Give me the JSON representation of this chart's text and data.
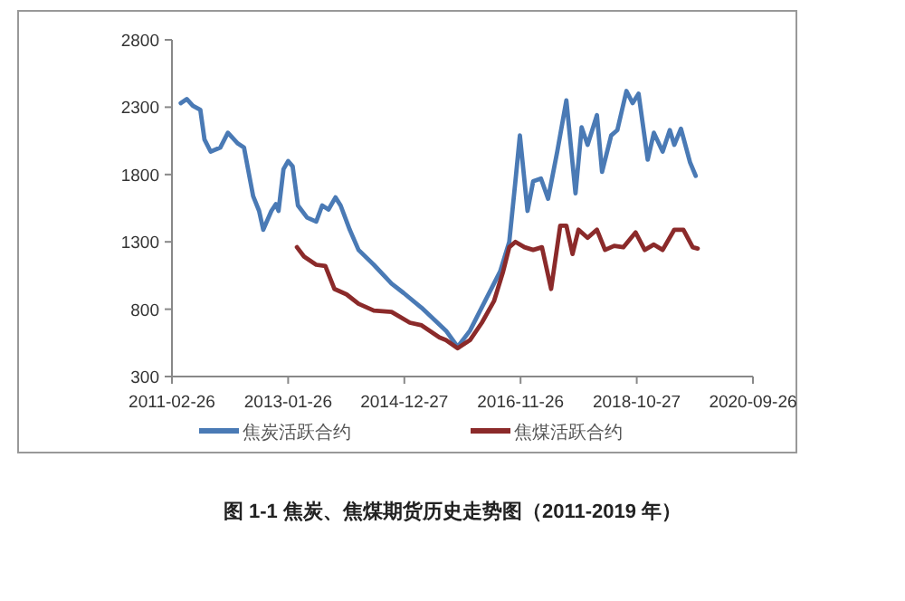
{
  "chart_data": {
    "type": "line",
    "xlim": [
      "2011-02-26",
      "2020-09-26"
    ],
    "xticks": [
      {
        "value": "2011-02-26",
        "label": "2011-02-26"
      },
      {
        "value": "2013-01-26",
        "label": "2013-01-26"
      },
      {
        "value": "2014-12-27",
        "label": "2014-12-27"
      },
      {
        "value": "2016-11-26",
        "label": "2016-11-26"
      },
      {
        "value": "2018-10-27",
        "label": "2018-10-27"
      },
      {
        "value": "2020-09-26",
        "label": "2020-09-26"
      }
    ],
    "ylim": [
      300,
      2800
    ],
    "yticks": [
      300,
      800,
      1300,
      1800,
      2300,
      2800
    ],
    "grid": false,
    "legend": "bottom",
    "line_style": "solid",
    "series": [
      {
        "name": "焦炭活跃合约",
        "color": "#4a7ab5",
        "x": [
          "2011-04-20",
          "2011-05-26",
          "2011-07-02",
          "2011-08-16",
          "2011-09-10",
          "2011-10-17",
          "2011-12-14",
          "2012-01-29",
          "2012-03-29",
          "2012-05-05",
          "2012-06-29",
          "2012-08-04",
          "2012-08-29",
          "2012-10-17",
          "2012-11-13",
          "2012-11-29",
          "2012-12-29",
          "2013-01-26",
          "2013-02-22",
          "2013-03-26",
          "2013-05-20",
          "2013-07-14",
          "2013-08-19",
          "2013-09-26",
          "2013-11-07",
          "2013-12-08",
          "2014-02-01",
          "2014-03-26",
          "2014-06-26",
          "2014-10-11",
          "2014-12-23",
          "2015-04-10",
          "2015-09-04",
          "2015-11-13",
          "2016-01-26",
          "2016-04-26",
          "2016-07-26",
          "2016-09-19",
          "2016-10-26",
          "2016-11-22",
          "2017-01-07",
          "2017-02-10",
          "2017-03-29",
          "2017-05-11",
          "2017-07-05",
          "2017-08-29",
          "2017-10-23",
          "2017-11-29",
          "2018-01-04",
          "2018-03-01",
          "2018-04-01",
          "2018-05-26",
          "2018-07-02",
          "2018-08-26",
          "2018-10-02",
          "2018-11-07",
          "2019-01-01",
          "2019-02-07",
          "2019-04-01",
          "2019-05-14",
          "2019-06-10",
          "2019-07-20",
          "2019-09-13",
          "2019-10-17"
        ],
        "values": [
          2330,
          2360,
          2310,
          2280,
          2060,
          1970,
          2000,
          2110,
          2030,
          2000,
          1640,
          1530,
          1390,
          1530,
          1580,
          1530,
          1840,
          1900,
          1860,
          1570,
          1480,
          1450,
          1570,
          1540,
          1630,
          1570,
          1390,
          1240,
          1130,
          990,
          920,
          810,
          640,
          520,
          640,
          860,
          1080,
          1300,
          1750,
          2090,
          1530,
          1750,
          1770,
          1620,
          1970,
          2350,
          1660,
          2150,
          2020,
          2240,
          1820,
          2090,
          2130,
          2420,
          2330,
          2400,
          1910,
          2110,
          1970,
          2130,
          2020,
          2140,
          1890,
          1790
        ]
      },
      {
        "name": "焦煤活跃合约",
        "color": "#8b2a2a",
        "x": [
          "2013-03-20",
          "2013-05-02",
          "2013-07-14",
          "2013-09-07",
          "2013-11-01",
          "2014-01-13",
          "2014-03-26",
          "2014-06-26",
          "2014-10-11",
          "2015-01-29",
          "2015-04-10",
          "2015-07-26",
          "2015-09-04",
          "2015-11-13",
          "2016-01-26",
          "2016-04-07",
          "2016-06-19",
          "2016-08-13",
          "2016-09-19",
          "2016-10-26",
          "2016-12-20",
          "2017-02-10",
          "2017-04-04",
          "2017-05-29",
          "2017-07-23",
          "2017-08-29",
          "2017-10-05",
          "2017-11-10",
          "2018-01-04",
          "2018-03-01",
          "2018-04-19",
          "2018-06-13",
          "2018-08-07",
          "2018-10-20",
          "2018-12-14",
          "2019-02-07",
          "2019-04-01",
          "2019-06-10",
          "2019-08-04",
          "2019-09-29",
          "2019-10-29"
        ],
        "values": [
          1260,
          1190,
          1130,
          1120,
          950,
          910,
          840,
          790,
          780,
          700,
          680,
          590,
          570,
          510,
          570,
          700,
          860,
          1080,
          1260,
          1300,
          1260,
          1240,
          1260,
          950,
          1420,
          1420,
          1210,
          1390,
          1330,
          1390,
          1240,
          1270,
          1260,
          1370,
          1240,
          1280,
          1240,
          1390,
          1390,
          1260,
          1250
        ]
      }
    ],
    "annotations": [
      "图 1-1   焦炭、焦煤期货历史走势图（2011-2019 年）"
    ]
  }
}
